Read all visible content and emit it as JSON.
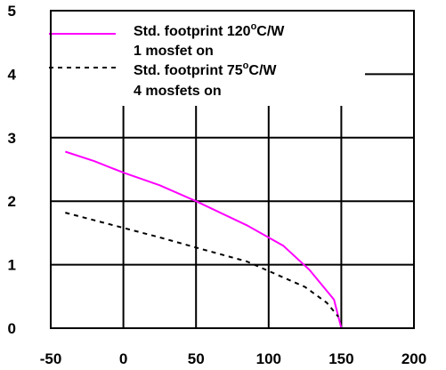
{
  "chart_data": {
    "type": "line",
    "xlim": [
      -50,
      200
    ],
    "ylim": [
      0,
      5
    ],
    "x_ticks": [
      -50,
      0,
      50,
      100,
      150,
      200
    ],
    "y_ticks": [
      0,
      1,
      2,
      3,
      4,
      5
    ],
    "grid": true,
    "legend_position": "top-left",
    "colors": {
      "series_1": "#ff00ff",
      "series_2": "#000000",
      "grid": "#000000"
    },
    "series": [
      {
        "name_line1": "Std. footprint 120",
        "name_sup": "o",
        "name_unit": "C/W",
        "name_line2": "1 mosfet on",
        "style": "solid",
        "x": [
          -40,
          -20,
          0,
          25,
          50,
          85,
          110,
          128,
          145,
          150
        ],
        "y": [
          2.78,
          2.63,
          2.45,
          2.25,
          2.0,
          1.62,
          1.3,
          0.92,
          0.45,
          0.0
        ]
      },
      {
        "name_line1": "Std. footprint 75",
        "name_sup": "o",
        "name_unit": "C/W",
        "name_line2": "4 mosfets on",
        "style": "dashed",
        "x": [
          -40,
          0,
          25,
          50,
          85,
          100,
          125,
          140,
          148
        ],
        "y": [
          1.82,
          1.58,
          1.43,
          1.27,
          1.05,
          0.9,
          0.65,
          0.4,
          0.18
        ]
      }
    ]
  }
}
